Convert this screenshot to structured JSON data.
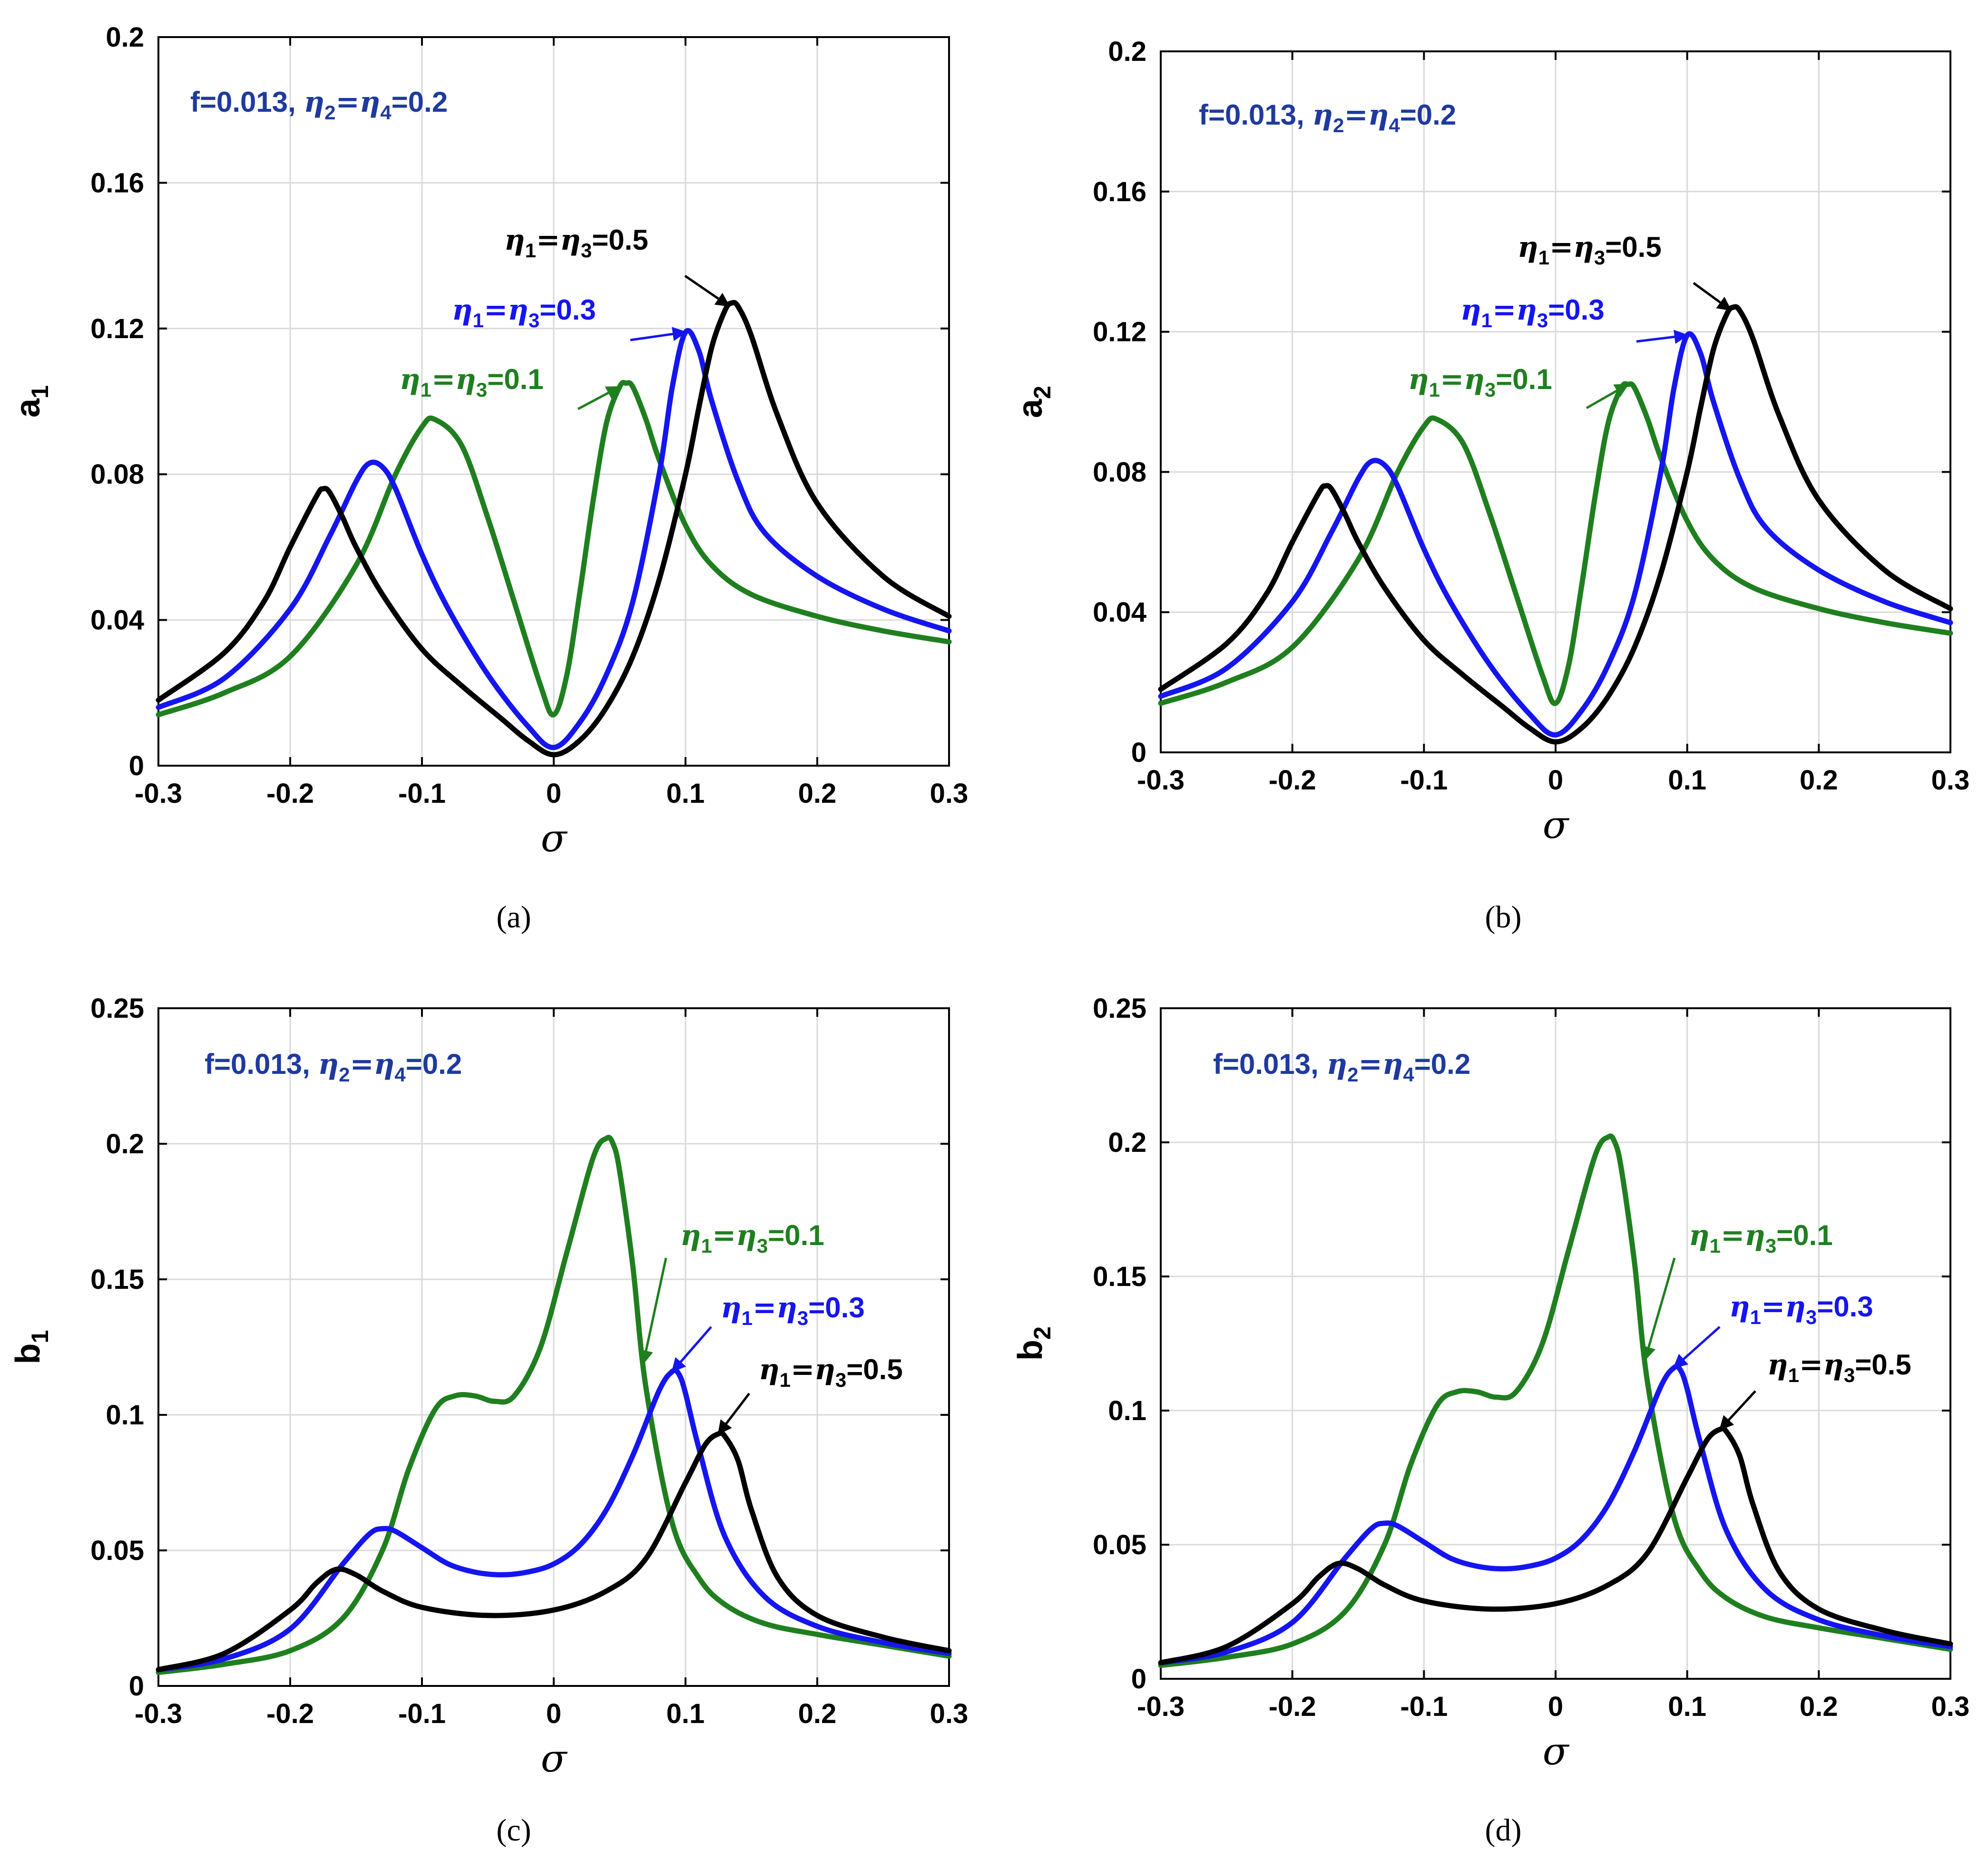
{
  "figure": {
    "colors": {
      "eta_0.1": "#1f7f1f",
      "eta_0.3": "#1515f0",
      "eta_0.5": "#000000",
      "params_text": "#1f3a9e",
      "grid": "#d9d9d9",
      "axes": "#000000"
    }
  },
  "chart_data": [
    {
      "id": "a",
      "type": "line",
      "caption": "(a)",
      "xlabel": "σ",
      "ylabel_main": "a",
      "ylabel_sub": "1",
      "xlim": [
        -0.3,
        0.3
      ],
      "ylim": [
        0,
        0.2
      ],
      "xticks": [
        -0.3,
        -0.2,
        -0.1,
        0,
        0.1,
        0.2,
        0.3
      ],
      "xtick_labels": [
        "-0.3",
        "-0.2",
        "-0.1",
        "0",
        "0.1",
        "0.2",
        "0.3"
      ],
      "yticks": [
        0,
        0.04,
        0.08,
        0.12,
        0.16,
        0.2
      ],
      "ytick_labels": [
        "0",
        "0.04",
        "0.08",
        "0.12",
        "0.16",
        "0.2"
      ],
      "grid": true,
      "params": {
        "f_text": "f=0.013, ",
        "eta_a": "2",
        "eq_mid": "=",
        "eta_b": "4",
        "eq_val": "=0.2"
      },
      "series": [
        {
          "key": "eta_0.1",
          "eta_label_i": "1",
          "eta_label_j": "3",
          "value_text": "=0.1",
          "x": [
            -0.3,
            -0.25,
            -0.2,
            -0.15,
            -0.12,
            -0.1,
            -0.09,
            -0.07,
            -0.05,
            -0.03,
            -0.01,
            0,
            0.01,
            0.02,
            0.03,
            0.04,
            0.05,
            0.055,
            0.06,
            0.07,
            0.08,
            0.1,
            0.12,
            0.15,
            0.2,
            0.25,
            0.3
          ],
          "y": [
            0.014,
            0.02,
            0.03,
            0.055,
            0.08,
            0.093,
            0.095,
            0.088,
            0.068,
            0.045,
            0.022,
            0.014,
            0.025,
            0.048,
            0.073,
            0.094,
            0.104,
            0.105,
            0.104,
            0.095,
            0.084,
            0.066,
            0.055,
            0.047,
            0.041,
            0.037,
            0.034
          ]
        },
        {
          "key": "eta_0.3",
          "eta_label_i": "1",
          "eta_label_j": "3",
          "value_text": "=0.3",
          "x": [
            -0.3,
            -0.25,
            -0.2,
            -0.17,
            -0.15,
            -0.14,
            -0.13,
            -0.12,
            -0.1,
            -0.08,
            -0.05,
            -0.02,
            0,
            0.02,
            0.04,
            0.06,
            0.08,
            0.09,
            0.1,
            0.11,
            0.12,
            0.14,
            0.16,
            0.2,
            0.25,
            0.3
          ],
          "y": [
            0.016,
            0.024,
            0.043,
            0.063,
            0.078,
            0.083,
            0.082,
            0.076,
            0.058,
            0.043,
            0.025,
            0.011,
            0.005,
            0.012,
            0.025,
            0.045,
            0.08,
            0.104,
            0.119,
            0.114,
            0.1,
            0.078,
            0.064,
            0.052,
            0.043,
            0.037
          ]
        },
        {
          "key": "eta_0.5",
          "eta_label_i": "1",
          "eta_label_j": "3",
          "value_text": "=0.5",
          "x": [
            -0.3,
            -0.25,
            -0.22,
            -0.2,
            -0.18,
            -0.175,
            -0.17,
            -0.16,
            -0.15,
            -0.13,
            -0.1,
            -0.07,
            -0.04,
            -0.02,
            0,
            0.02,
            0.04,
            0.06,
            0.08,
            0.1,
            0.11,
            0.12,
            0.13,
            0.135,
            0.14,
            0.15,
            0.17,
            0.2,
            0.25,
            0.3
          ],
          "y": [
            0.018,
            0.031,
            0.045,
            0.06,
            0.074,
            0.076,
            0.075,
            0.068,
            0.06,
            0.047,
            0.032,
            0.022,
            0.013,
            0.007,
            0.003,
            0.007,
            0.016,
            0.03,
            0.051,
            0.08,
            0.098,
            0.115,
            0.125,
            0.127,
            0.126,
            0.118,
            0.096,
            0.072,
            0.052,
            0.041
          ]
        }
      ]
    },
    {
      "id": "b",
      "type": "line",
      "caption": "(b)",
      "xlabel": "σ",
      "ylabel_main": "a",
      "ylabel_sub": "2",
      "xlim": [
        -0.3,
        0.3
      ],
      "ylim": [
        0,
        0.2
      ],
      "xticks": [
        -0.3,
        -0.2,
        -0.1,
        0,
        0.1,
        0.2,
        0.3
      ],
      "xtick_labels": [
        "-0.3",
        "-0.2",
        "-0.1",
        "0",
        "0.1",
        "0.2",
        "0.3"
      ],
      "yticks": [
        0,
        0.04,
        0.08,
        0.12,
        0.16,
        0.2
      ],
      "ytick_labels": [
        "0",
        "0.04",
        "0.08",
        "0.12",
        "0.16",
        "0.2"
      ],
      "grid": true,
      "params": {
        "f_text": "f=0.013, ",
        "eta_a": "2",
        "eq_mid": "=",
        "eta_b": "4",
        "eq_val": "=0.2"
      },
      "series": [
        {
          "key": "eta_0.1",
          "eta_label_i": "1",
          "eta_label_j": "3",
          "value_text": "=0.1",
          "x": [
            -0.3,
            -0.25,
            -0.2,
            -0.15,
            -0.12,
            -0.1,
            -0.09,
            -0.07,
            -0.05,
            -0.03,
            -0.01,
            0,
            0.01,
            0.02,
            0.03,
            0.04,
            0.05,
            0.055,
            0.06,
            0.07,
            0.08,
            0.1,
            0.12,
            0.15,
            0.2,
            0.25,
            0.3
          ],
          "y": [
            0.014,
            0.02,
            0.03,
            0.055,
            0.08,
            0.093,
            0.095,
            0.088,
            0.068,
            0.045,
            0.022,
            0.014,
            0.025,
            0.048,
            0.073,
            0.094,
            0.104,
            0.105,
            0.104,
            0.095,
            0.084,
            0.066,
            0.055,
            0.047,
            0.041,
            0.037,
            0.034
          ]
        },
        {
          "key": "eta_0.3",
          "eta_label_i": "1",
          "eta_label_j": "3",
          "value_text": "=0.3",
          "x": [
            -0.3,
            -0.25,
            -0.2,
            -0.17,
            -0.15,
            -0.14,
            -0.13,
            -0.12,
            -0.1,
            -0.08,
            -0.05,
            -0.02,
            0,
            0.02,
            0.04,
            0.06,
            0.08,
            0.09,
            0.1,
            0.11,
            0.12,
            0.14,
            0.16,
            0.2,
            0.25,
            0.3
          ],
          "y": [
            0.016,
            0.024,
            0.043,
            0.063,
            0.078,
            0.083,
            0.082,
            0.076,
            0.058,
            0.043,
            0.025,
            0.011,
            0.005,
            0.012,
            0.025,
            0.045,
            0.08,
            0.104,
            0.119,
            0.114,
            0.1,
            0.078,
            0.064,
            0.052,
            0.043,
            0.037
          ]
        },
        {
          "key": "eta_0.5",
          "eta_label_i": "1",
          "eta_label_j": "3",
          "value_text": "=0.5",
          "x": [
            -0.3,
            -0.25,
            -0.22,
            -0.2,
            -0.18,
            -0.175,
            -0.17,
            -0.16,
            -0.15,
            -0.13,
            -0.1,
            -0.07,
            -0.04,
            -0.02,
            0,
            0.02,
            0.04,
            0.06,
            0.08,
            0.1,
            0.11,
            0.12,
            0.13,
            0.135,
            0.14,
            0.15,
            0.17,
            0.2,
            0.25,
            0.3
          ],
          "y": [
            0.018,
            0.031,
            0.045,
            0.06,
            0.074,
            0.076,
            0.075,
            0.068,
            0.06,
            0.047,
            0.032,
            0.022,
            0.013,
            0.007,
            0.003,
            0.007,
            0.016,
            0.03,
            0.051,
            0.08,
            0.098,
            0.115,
            0.125,
            0.127,
            0.126,
            0.118,
            0.096,
            0.072,
            0.052,
            0.041
          ]
        }
      ]
    },
    {
      "id": "c",
      "type": "line",
      "caption": "(c)",
      "xlabel": "σ",
      "ylabel_main": "b",
      "ylabel_sub": "1",
      "xlim": [
        -0.3,
        0.3
      ],
      "ylim": [
        0,
        0.25
      ],
      "xticks": [
        -0.3,
        -0.2,
        -0.1,
        0,
        0.1,
        0.2,
        0.3
      ],
      "xtick_labels": [
        "-0.3",
        "-0.2",
        "-0.1",
        "0",
        "0.1",
        "0.2",
        "0.3"
      ],
      "yticks": [
        0,
        0.05,
        0.1,
        0.15,
        0.2,
        0.25
      ],
      "ytick_labels": [
        "0",
        "0.05",
        "0.1",
        "0.15",
        "0.2",
        "0.25"
      ],
      "grid": true,
      "params": {
        "f_text": "f=0.013, ",
        "eta_a": "2",
        "eq_mid": "=",
        "eta_b": "4",
        "eq_val": "=0.2"
      },
      "series": [
        {
          "key": "eta_0.1",
          "eta_label_i": "1",
          "eta_label_j": "3",
          "value_text": "=0.1",
          "x": [
            -0.3,
            -0.25,
            -0.2,
            -0.16,
            -0.13,
            -0.11,
            -0.09,
            -0.075,
            -0.06,
            -0.045,
            -0.03,
            -0.01,
            0.01,
            0.03,
            0.04,
            0.045,
            0.05,
            0.06,
            0.07,
            0.09,
            0.11,
            0.13,
            0.16,
            0.2,
            0.25,
            0.3
          ],
          "y": [
            0.005,
            0.008,
            0.013,
            0.025,
            0.05,
            0.08,
            0.102,
            0.107,
            0.107,
            0.105,
            0.107,
            0.125,
            0.16,
            0.195,
            0.202,
            0.2,
            0.19,
            0.155,
            0.11,
            0.06,
            0.04,
            0.03,
            0.023,
            0.019,
            0.015,
            0.011
          ]
        },
        {
          "key": "eta_0.3",
          "eta_label_i": "1",
          "eta_label_j": "3",
          "value_text": "=0.3",
          "x": [
            -0.3,
            -0.25,
            -0.2,
            -0.16,
            -0.14,
            -0.13,
            -0.12,
            -0.1,
            -0.08,
            -0.06,
            -0.04,
            -0.02,
            0,
            0.02,
            0.04,
            0.06,
            0.08,
            0.09,
            0.095,
            0.1,
            0.11,
            0.13,
            0.16,
            0.2,
            0.25,
            0.3
          ],
          "y": [
            0.006,
            0.01,
            0.021,
            0.045,
            0.056,
            0.058,
            0.057,
            0.051,
            0.045,
            0.042,
            0.041,
            0.042,
            0.045,
            0.052,
            0.065,
            0.085,
            0.109,
            0.116,
            0.115,
            0.108,
            0.088,
            0.055,
            0.033,
            0.022,
            0.016,
            0.012
          ]
        },
        {
          "key": "eta_0.5",
          "eta_label_i": "1",
          "eta_label_j": "3",
          "value_text": "=0.5",
          "x": [
            -0.3,
            -0.25,
            -0.2,
            -0.18,
            -0.165,
            -0.15,
            -0.13,
            -0.1,
            -0.05,
            0,
            0.04,
            0.07,
            0.1,
            0.115,
            0.125,
            0.13,
            0.14,
            0.15,
            0.17,
            0.2,
            0.25,
            0.3
          ],
          "y": [
            0.006,
            0.012,
            0.028,
            0.038,
            0.043,
            0.041,
            0.035,
            0.029,
            0.026,
            0.028,
            0.035,
            0.047,
            0.075,
            0.089,
            0.093,
            0.092,
            0.083,
            0.065,
            0.04,
            0.026,
            0.018,
            0.013
          ]
        }
      ]
    },
    {
      "id": "d",
      "type": "line",
      "caption": "(d)",
      "xlabel": "σ",
      "ylabel_main": "b",
      "ylabel_sub": "2",
      "xlim": [
        -0.3,
        0.3
      ],
      "ylim": [
        0,
        0.25
      ],
      "xticks": [
        -0.3,
        -0.2,
        -0.1,
        0,
        0.1,
        0.2,
        0.3
      ],
      "xtick_labels": [
        "-0.3",
        "-0.2",
        "-0.1",
        "0",
        "0.1",
        "0.2",
        "0.3"
      ],
      "yticks": [
        0,
        0.05,
        0.1,
        0.15,
        0.2,
        0.25
      ],
      "ytick_labels": [
        "0",
        "0.05",
        "0.1",
        "0.15",
        "0.2",
        "0.25"
      ],
      "grid": true,
      "params": {
        "f_text": "f=0.013, ",
        "eta_a": "2",
        "eq_mid": "=",
        "eta_b": "4",
        "eq_val": "=0.2"
      },
      "series": [
        {
          "key": "eta_0.1",
          "eta_label_i": "1",
          "eta_label_j": "3",
          "value_text": "=0.1",
          "x": [
            -0.3,
            -0.25,
            -0.2,
            -0.16,
            -0.13,
            -0.11,
            -0.09,
            -0.075,
            -0.06,
            -0.045,
            -0.03,
            -0.01,
            0.01,
            0.03,
            0.04,
            0.045,
            0.05,
            0.06,
            0.07,
            0.09,
            0.11,
            0.13,
            0.16,
            0.2,
            0.25,
            0.3
          ],
          "y": [
            0.005,
            0.008,
            0.013,
            0.025,
            0.05,
            0.08,
            0.102,
            0.107,
            0.107,
            0.105,
            0.107,
            0.125,
            0.16,
            0.195,
            0.202,
            0.2,
            0.19,
            0.155,
            0.11,
            0.06,
            0.04,
            0.03,
            0.023,
            0.019,
            0.015,
            0.011
          ]
        },
        {
          "key": "eta_0.3",
          "eta_label_i": "1",
          "eta_label_j": "3",
          "value_text": "=0.3",
          "x": [
            -0.3,
            -0.25,
            -0.2,
            -0.16,
            -0.14,
            -0.13,
            -0.12,
            -0.1,
            -0.08,
            -0.06,
            -0.04,
            -0.02,
            0,
            0.02,
            0.04,
            0.06,
            0.08,
            0.09,
            0.095,
            0.1,
            0.11,
            0.13,
            0.16,
            0.2,
            0.25,
            0.3
          ],
          "y": [
            0.006,
            0.01,
            0.021,
            0.045,
            0.056,
            0.058,
            0.057,
            0.051,
            0.045,
            0.042,
            0.041,
            0.042,
            0.045,
            0.052,
            0.065,
            0.085,
            0.109,
            0.116,
            0.115,
            0.108,
            0.088,
            0.055,
            0.033,
            0.022,
            0.016,
            0.012
          ]
        },
        {
          "key": "eta_0.5",
          "eta_label_i": "1",
          "eta_label_j": "3",
          "value_text": "=0.5",
          "x": [
            -0.3,
            -0.25,
            -0.2,
            -0.18,
            -0.165,
            -0.15,
            -0.13,
            -0.1,
            -0.05,
            0,
            0.04,
            0.07,
            0.1,
            0.115,
            0.125,
            0.13,
            0.14,
            0.15,
            0.17,
            0.2,
            0.25,
            0.3
          ],
          "y": [
            0.006,
            0.012,
            0.028,
            0.038,
            0.043,
            0.041,
            0.035,
            0.029,
            0.026,
            0.028,
            0.035,
            0.047,
            0.075,
            0.089,
            0.093,
            0.092,
            0.083,
            0.065,
            0.04,
            0.026,
            0.018,
            0.013
          ]
        }
      ]
    }
  ]
}
